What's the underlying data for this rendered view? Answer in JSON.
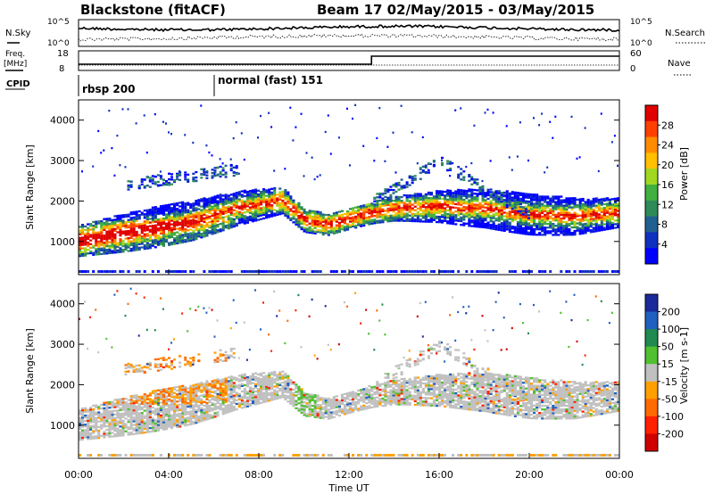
{
  "title": {
    "station": "Blackstone (fitACF)",
    "beam_dates": "Beam 17 02/May/2015 - 03/May/2015"
  },
  "header": {
    "nsky_label": "N.Sky",
    "nsearch_label": "N.Search",
    "freq_label_line1": "Freq.",
    "freq_label_line2": "[MHz]",
    "nave_label": "Nave",
    "cpid_label": "CPID",
    "left_ticks_noise": [
      "10^5",
      "10^0"
    ],
    "right_ticks_noise": [
      "10^5",
      "10^0"
    ],
    "freq_ticks": [
      "18",
      "8"
    ],
    "nave_ticks": [
      "60",
      "0"
    ]
  },
  "cpid": {
    "segments": [
      {
        "label": "rbsp 200",
        "start_hour": 0
      },
      {
        "label": "normal (fast) 151",
        "start_hour": 6
      }
    ]
  },
  "colorbars": {
    "power": {
      "label": "Power [dB]",
      "ticks": [
        "28",
        "24",
        "20",
        "16",
        "12",
        "8",
        "4"
      ],
      "colors": [
        "#e00000",
        "#ff4000",
        "#ff8c00",
        "#ffc000",
        "#a0d820",
        "#40b040",
        "#2e8b57",
        "#206090",
        "#1030c0",
        "#0000ff"
      ]
    },
    "velocity": {
      "label": "Velocity [m s-1]",
      "ticks": [
        "200",
        "100",
        "50",
        "15",
        "-15",
        "-50",
        "-100",
        "-200"
      ],
      "colors": [
        "#1a2a9a",
        "#2060c0",
        "#208a50",
        "#50c030",
        "#c0c0c0",
        "#ffa000",
        "#ff6a00",
        "#ff2000",
        "#d00000"
      ]
    }
  },
  "axes": {
    "ylabel": "Slant Range [km]",
    "xlabel": "Time UT",
    "y_ticks": [
      "4000",
      "3000",
      "2000",
      "1000"
    ],
    "x_ticks": [
      "00:00",
      "04:00",
      "08:00",
      "12:00",
      "16:00",
      "20:00",
      "00:00"
    ]
  },
  "chart_data": {
    "type": "heatmap",
    "x_range_hours": [
      0,
      24
    ],
    "y_range_km": [
      180,
      4500
    ],
    "panels": [
      "power",
      "velocity"
    ],
    "main_band_center_km": [
      [
        0,
        1000
      ],
      [
        1,
        1100
      ],
      [
        2,
        1200
      ],
      [
        3,
        1300
      ],
      [
        4,
        1400
      ],
      [
        5,
        1500
      ],
      [
        6,
        1650
      ],
      [
        7,
        1800
      ],
      [
        8,
        1900
      ],
      [
        9,
        2000
      ],
      [
        10,
        1500
      ],
      [
        11,
        1400
      ],
      [
        12,
        1550
      ],
      [
        13,
        1700
      ],
      [
        14,
        1800
      ],
      [
        16,
        1850
      ],
      [
        18,
        1800
      ],
      [
        20,
        1650
      ],
      [
        22,
        1600
      ],
      [
        24,
        1700
      ]
    ],
    "freq_step": {
      "before_hour": 13,
      "after_hour": 13
    }
  }
}
